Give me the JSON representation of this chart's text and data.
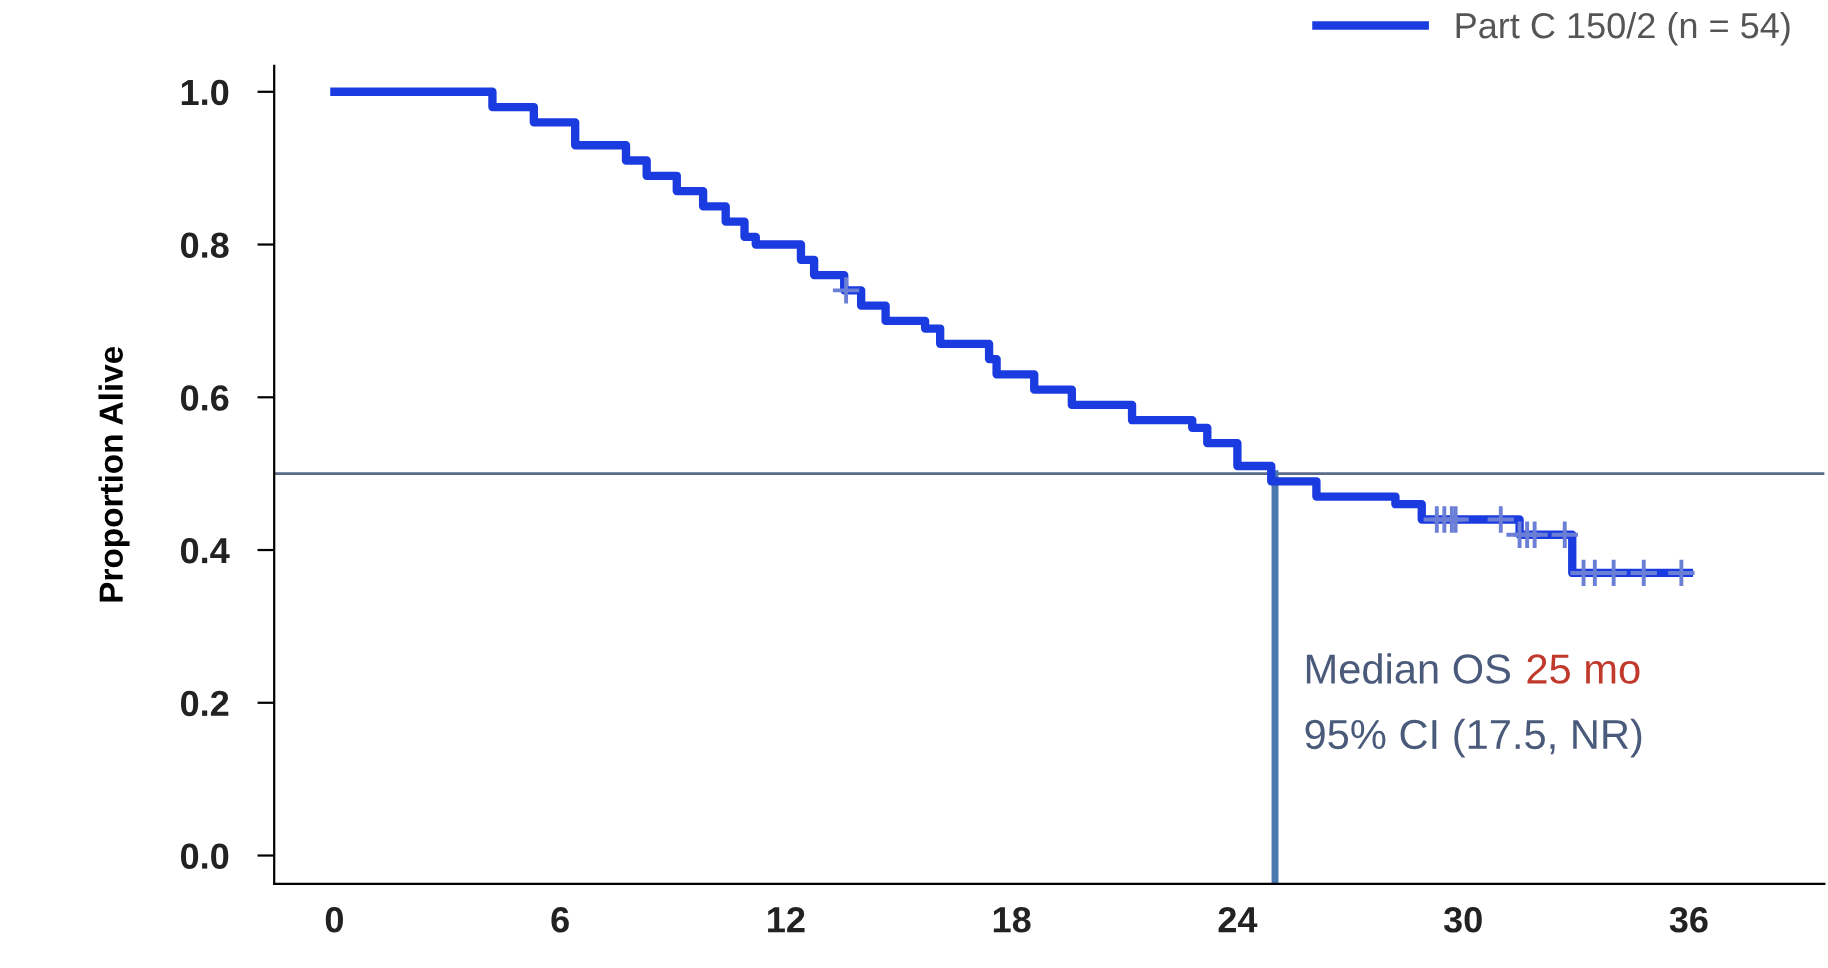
{
  "chart_data": {
    "type": "step",
    "ylabel": "Proportion Alive",
    "xlim": [
      -1.6,
      39.6
    ],
    "xticks": [
      0,
      6,
      12,
      18,
      24,
      30,
      36
    ],
    "ylim": [
      -0.037,
      1.034
    ],
    "yticks": [
      {
        "value": 0,
        "label": "0.0"
      },
      {
        "value": 0.2,
        "label": "0.2"
      },
      {
        "value": 0.4,
        "label": "0.4"
      },
      {
        "value": 0.6,
        "label": "0.6"
      },
      {
        "value": 0.8,
        "label": "0.8"
      },
      {
        "value": 1,
        "label": "1.0"
      }
    ],
    "series": [
      {
        "name": "Part C 150/2 (n = 54)",
        "color": "#1a3be0",
        "x": [
          0,
          4.2,
          5.3,
          6.4,
          7.75,
          8.3,
          9.1,
          9.8,
          10.4,
          10.9,
          11.2,
          12.4,
          12.75,
          13.55,
          14.0,
          14.65,
          15.7,
          16.1,
          17.4,
          17.6,
          18.6,
          19.6,
          21.2,
          22.8,
          23.2,
          24.0,
          24.9,
          26.1,
          28.2,
          28.9,
          31.5,
          32.9,
          36.0
        ],
        "values": [
          1.0,
          0.98,
          0.96,
          0.93,
          0.91,
          0.89,
          0.87,
          0.85,
          0.83,
          0.81,
          0.8,
          0.78,
          0.76,
          0.74,
          0.72,
          0.7,
          0.69,
          0.67,
          0.65,
          0.63,
          0.61,
          0.59,
          0.57,
          0.56,
          0.54,
          0.51,
          0.49,
          0.47,
          0.46,
          0.44,
          0.42,
          0.37,
          0.37
        ]
      },
      {
        "type": "scatter",
        "marker": "cross",
        "color": "#6b7fd6",
        "x": [
          13.6,
          29.3,
          29.5,
          29.7,
          29.8,
          31.0,
          31.5,
          31.7,
          31.9,
          32.7,
          33.2,
          33.5,
          34.0,
          34.8,
          35.8
        ],
        "values": [
          0.74,
          0.44,
          0.44,
          0.44,
          0.44,
          0.44,
          0.42,
          0.42,
          0.42,
          0.42,
          0.37,
          0.37,
          0.37,
          0.37,
          0.37
        ]
      }
    ],
    "ref_lines": [
      {
        "axis": "y",
        "value": 0.5,
        "color": "#5a6b8a"
      },
      {
        "axis": "x",
        "value": 25,
        "color": "#4a78b0"
      }
    ],
    "annotations": [
      "Median OS",
      "25 mo",
      "95% CI (17.5, NR)"
    ],
    "legend": "top right",
    "grid": false
  }
}
